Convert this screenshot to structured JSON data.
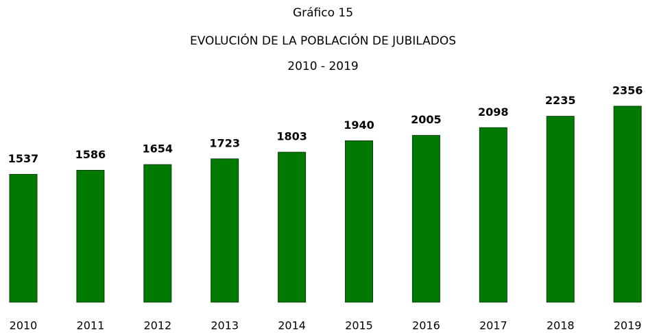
{
  "chart_data": {
    "type": "bar",
    "figure_label": "Gráfico 15",
    "title": "EVOLUCIÓN DE LA POBLACIÓN DE JUBILADOS",
    "subtitle": "2010 - 2019",
    "categories": [
      "2010",
      "2011",
      "2012",
      "2013",
      "2014",
      "2015",
      "2016",
      "2017",
      "2018",
      "2019"
    ],
    "values": [
      1537,
      1586,
      1654,
      1723,
      1803,
      1940,
      2005,
      2098,
      2235,
      2356
    ],
    "color": "#007a00"
  }
}
